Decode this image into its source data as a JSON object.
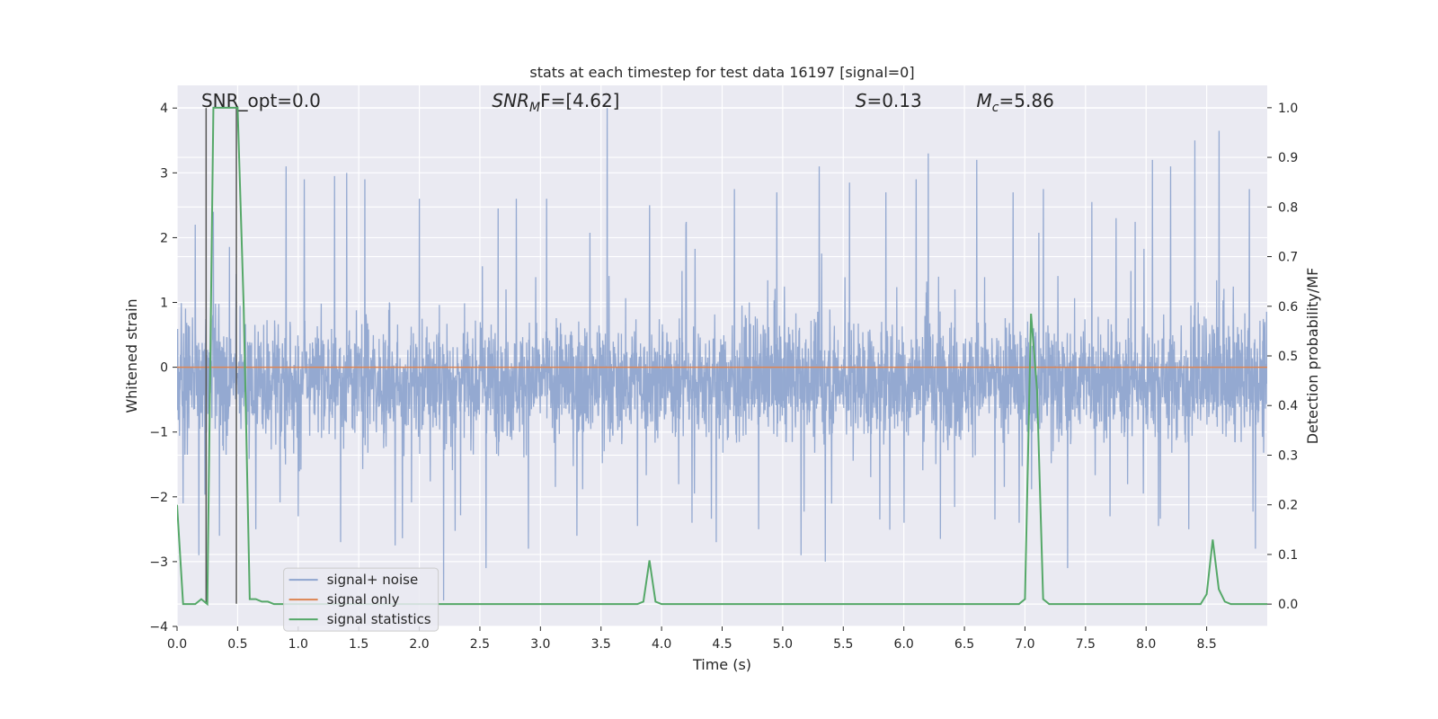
{
  "chart_data": {
    "type": "line",
    "title": "stats at each timestep for test data 16197 [signal=0]",
    "xlabel": "Time (s)",
    "ylabel_left": "Whitened strain",
    "ylabel_right": "Detection probability/MF",
    "xlim": [
      0.0,
      9.0
    ],
    "ylim_left": [
      -4.0,
      4.35
    ],
    "ylim_right": [
      -0.045,
      1.045
    ],
    "x_ticks": [
      "0.0",
      "0.5",
      "1.0",
      "1.5",
      "2.0",
      "2.5",
      "3.0",
      "3.5",
      "4.0",
      "4.5",
      "5.0",
      "5.5",
      "6.0",
      "6.5",
      "7.0",
      "7.5",
      "8.0",
      "8.5"
    ],
    "y_ticks_left": [
      "−4",
      "−3",
      "−2",
      "−1",
      "0",
      "1",
      "2",
      "3",
      "4"
    ],
    "y_ticks_right": [
      "0.0",
      "0.1",
      "0.2",
      "0.3",
      "0.4",
      "0.5",
      "0.6",
      "0.7",
      "0.8",
      "0.9",
      "1.0"
    ],
    "grid": true,
    "legend_position": "lower-left",
    "annotations": {
      "snr_opt": "SNR_opt=0.0",
      "snr_mf_name": "SNR",
      "snr_mf_sub": "M",
      "snr_mf_rest": "F=[4.62]",
      "s_name": "S",
      "s_rest": "=0.13",
      "mc_name": "M",
      "mc_sub": "c",
      "mc_rest": "=5.86"
    },
    "markers_x": [
      0.24,
      0.49
    ],
    "series": [
      {
        "name": "signal+ noise",
        "axis": "left",
        "color": "#8fa5cf",
        "style": "noise",
        "range": [
          -1.4,
          1.0
        ],
        "peak_high": [
          [
            0.05,
            2.35
          ],
          [
            0.15,
            2.2
          ],
          [
            0.3,
            2.4
          ],
          [
            0.9,
            3.1
          ],
          [
            1.05,
            2.9
          ],
          [
            1.3,
            2.95
          ],
          [
            1.4,
            3.0
          ],
          [
            1.55,
            2.9
          ],
          [
            2.0,
            2.6
          ],
          [
            2.65,
            2.45
          ],
          [
            2.8,
            2.6
          ],
          [
            3.05,
            2.6
          ],
          [
            3.55,
            4.0
          ],
          [
            3.9,
            2.5
          ],
          [
            4.2,
            2.2
          ],
          [
            4.6,
            2.75
          ],
          [
            4.95,
            2.7
          ],
          [
            5.3,
            3.1
          ],
          [
            5.55,
            2.85
          ],
          [
            5.85,
            2.7
          ],
          [
            6.1,
            2.9
          ],
          [
            6.2,
            3.3
          ],
          [
            6.6,
            3.2
          ],
          [
            6.9,
            2.7
          ],
          [
            7.15,
            2.75
          ],
          [
            7.55,
            2.55
          ],
          [
            7.75,
            2.3
          ],
          [
            8.05,
            3.2
          ],
          [
            8.2,
            3.1
          ],
          [
            8.4,
            3.5
          ],
          [
            8.6,
            3.65
          ],
          [
            8.85,
            2.75
          ]
        ],
        "peak_low": [
          [
            0.05,
            -2.1
          ],
          [
            0.18,
            -2.9
          ],
          [
            0.35,
            -2.6
          ],
          [
            0.65,
            -2.5
          ],
          [
            1.0,
            -2.3
          ],
          [
            1.35,
            -2.7
          ],
          [
            1.8,
            -2.75
          ],
          [
            2.2,
            -3.6
          ],
          [
            2.55,
            -3.1
          ],
          [
            2.9,
            -2.8
          ],
          [
            3.3,
            -2.6
          ],
          [
            3.8,
            -2.45
          ],
          [
            4.25,
            -2.4
          ],
          [
            4.45,
            -2.7
          ],
          [
            4.8,
            -2.5
          ],
          [
            5.15,
            -2.9
          ],
          [
            5.35,
            -3.0
          ],
          [
            5.8,
            -2.35
          ],
          [
            6.0,
            -2.4
          ],
          [
            6.3,
            -2.65
          ],
          [
            6.75,
            -2.35
          ],
          [
            6.95,
            -2.4
          ],
          [
            7.35,
            -3.1
          ],
          [
            7.7,
            -2.3
          ],
          [
            8.1,
            -2.45
          ],
          [
            8.35,
            -2.5
          ],
          [
            8.9,
            -2.8
          ]
        ]
      },
      {
        "name": "signal only",
        "axis": "left",
        "color": "#dd8452",
        "x": [
          0.0,
          9.0
        ],
        "y": [
          0.0,
          0.0
        ]
      },
      {
        "name": "signal statistics",
        "axis": "right",
        "color": "#55a868",
        "x": [
          0.0,
          0.05,
          0.1,
          0.15,
          0.2,
          0.25,
          0.3,
          0.35,
          0.4,
          0.45,
          0.5,
          0.55,
          0.6,
          0.65,
          0.7,
          0.75,
          0.8,
          0.85,
          1.0,
          2.0,
          3.0,
          3.8,
          3.85,
          3.9,
          3.95,
          4.0,
          4.5,
          5.0,
          6.0,
          6.95,
          7.0,
          7.05,
          7.1,
          7.15,
          7.2,
          7.25,
          8.0,
          8.45,
          8.5,
          8.55,
          8.6,
          8.65,
          8.7,
          8.8,
          9.0
        ],
        "y": [
          0.2,
          0.0,
          0.0,
          0.0,
          0.01,
          0.0,
          1.0,
          1.0,
          1.0,
          1.0,
          1.0,
          0.6,
          0.01,
          0.01,
          0.005,
          0.005,
          0.0,
          0.0,
          0.0,
          0.0,
          0.0,
          0.0,
          0.005,
          0.088,
          0.005,
          0.0,
          0.0,
          0.0,
          0.0,
          0.0,
          0.01,
          0.585,
          0.43,
          0.01,
          0.0,
          0.0,
          0.0,
          0.0,
          0.02,
          0.13,
          0.03,
          0.005,
          0.0,
          0.0,
          0.0
        ]
      }
    ]
  }
}
